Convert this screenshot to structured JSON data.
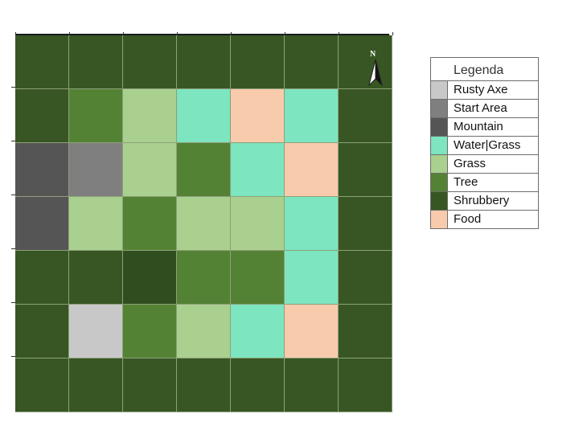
{
  "legend": {
    "title": "Legenda",
    "items": [
      {
        "key": "rusty_axe",
        "label": "Rusty Axe",
        "color": "#c8c8c8"
      },
      {
        "key": "start_area",
        "label": "Start Area",
        "color": "#7f7f7f"
      },
      {
        "key": "mountain",
        "label": "Mountain",
        "color": "#555555"
      },
      {
        "key": "water_grass",
        "label": "Water|Grass",
        "color": "#7de5bf"
      },
      {
        "key": "grass",
        "label": "Grass",
        "color": "#a9d08e"
      },
      {
        "key": "tree",
        "label": "Tree",
        "color": "#548235"
      },
      {
        "key": "shrubbery",
        "label": "Shrubbery",
        "color": "#375623"
      },
      {
        "key": "food",
        "label": "Food",
        "color": "#f8cbad"
      }
    ]
  },
  "compass": {
    "letter": "N",
    "icon": "north-arrow-icon"
  },
  "map": {
    "rows": 7,
    "cols": 7,
    "grid": [
      [
        "shrubbery",
        "shrubbery",
        "shrubbery",
        "shrubbery",
        "shrubbery",
        "shrubbery",
        "shrubbery"
      ],
      [
        "shrubbery",
        "tree",
        "grass",
        "water_grass",
        "food",
        "water_grass",
        "shrubbery"
      ],
      [
        "mountain",
        "start_area",
        "grass",
        "tree",
        "water_grass",
        "food",
        "shrubbery"
      ],
      [
        "mountain",
        "grass",
        "tree",
        "grass",
        "grass",
        "water_grass",
        "shrubbery"
      ],
      [
        "shrubbery",
        "shrubbery",
        "shrubbery",
        "tree",
        "tree",
        "water_grass",
        "shrubbery"
      ],
      [
        "shrubbery",
        "rusty_axe",
        "tree",
        "grass",
        "water_grass",
        "food",
        "shrubbery"
      ],
      [
        "shrubbery",
        "shrubbery",
        "shrubbery",
        "shrubbery",
        "shrubbery",
        "shrubbery",
        "shrubbery"
      ]
    ]
  }
}
